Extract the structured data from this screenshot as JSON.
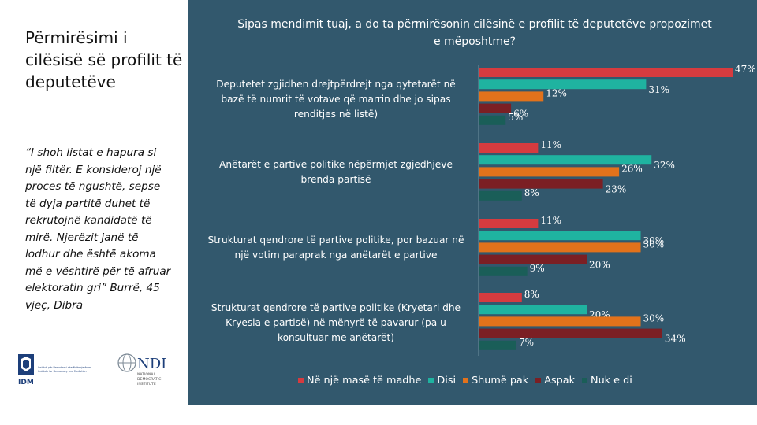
{
  "slide": {
    "title": "Përmirësimi i cilësisë së profilit të deputetëve",
    "quote": "“I shoh listat e hapura si një filtër. E konsideroj një proces të ngushtë, sepse të dyja partitë duhet të rekrutojnë kandidatë të mirë. Njerëzit janë të lodhur dhe është akoma më e vështirë për të afruar elektoratin gri” Burrë, 45 vjeç, Dibra",
    "logos": {
      "idm_acronym": "IDM",
      "idm_line1": "Instituti për Demokraci dhe Ndërmjetësim",
      "idm_line2": "Institute for Democracy and Mediation",
      "ndi_acronym": "NDI",
      "ndi_line1": "NATIONAL",
      "ndi_line2": "DEMOCRATIC",
      "ndi_line3": "INSTITUTE"
    }
  },
  "chart_data": {
    "type": "bar",
    "orientation": "horizontal",
    "title": "Sipas mendimit tuaj, a do ta përmirësonin cilësinë e profilit të deputetëve propozimet e mëposhtme?",
    "categories": [
      "Deputetet zgjidhen drejtpërdrejt nga qytetarët në bazë të numrit të votave që marrin dhe jo sipas renditjes në listë)",
      "Anëtarët e partive politike nëpërmjet zgjedhjeve brenda partisë",
      "Strukturat qendrore të partive politike, por bazuar në një votim paraprak nga anëtarët e partive",
      "Strukturat qendrore të partive politike (Kryetari dhe Kryesia e partisë) në mënyrë të pavarur (pa u konsultuar me anëtarët)"
    ],
    "series": [
      {
        "name": "Në një masë të madhe",
        "color": "#d63b3f",
        "values": [
          47,
          11,
          11,
          8
        ]
      },
      {
        "name": "Disi",
        "color": "#1fb3a0",
        "values": [
          31,
          32,
          30,
          20
        ]
      },
      {
        "name": "Shumë pak",
        "color": "#e2721b",
        "values": [
          12,
          26,
          30,
          30
        ]
      },
      {
        "name": "Aspak",
        "color": "#7b1f24",
        "values": [
          6,
          23,
          20,
          34
        ]
      },
      {
        "name": "Nuk e di",
        "color": "#1a5e58",
        "values": [
          5,
          8,
          9,
          7
        ]
      }
    ],
    "value_suffix": "%",
    "xlim": [
      0,
      50
    ],
    "grid": false,
    "legend": "bottom"
  }
}
